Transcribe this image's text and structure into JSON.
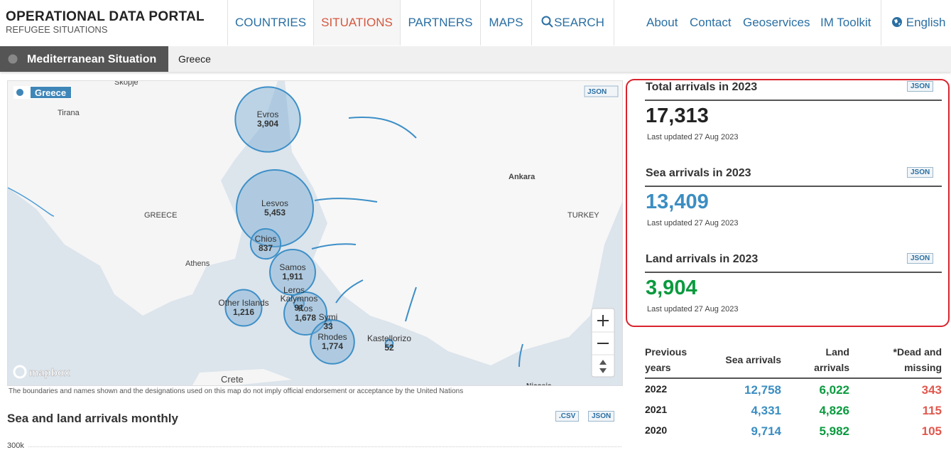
{
  "header": {
    "title": "OPERATIONAL DATA PORTAL",
    "subtitle": "REFUGEE SITUATIONS",
    "nav": [
      "COUNTRIES",
      "SITUATIONS",
      "PARTNERS",
      "MAPS",
      "SEARCH"
    ],
    "links": [
      "About",
      "Contact",
      "Geoservices",
      "IM Toolkit"
    ],
    "language": "English"
  },
  "breadcrumb": {
    "situation": "Mediterranean Situation",
    "country": "Greece"
  },
  "map": {
    "label": "Greece",
    "button": "JSON",
    "places": [
      "Skopje",
      "Tirana",
      "GREECE",
      "Athens",
      "Ankara",
      "TURKEY",
      "Crete",
      "Nicosia"
    ],
    "attribution": "mapbox",
    "points": [
      {
        "name": "Evros",
        "value": 3904,
        "value_label": "3,904"
      },
      {
        "name": "Lesvos",
        "value": 5453,
        "value_label": "5,453"
      },
      {
        "name": "Chios",
        "value": 837,
        "value_label": "837"
      },
      {
        "name": "Samos",
        "value": 1911,
        "value_label": "1,911"
      },
      {
        "name": "Other Islands",
        "value": 1216,
        "value_label": "1,216"
      },
      {
        "name": "Leros"
      },
      {
        "name": "Kalymnos",
        "value": 91,
        "value_label": "91"
      },
      {
        "name": "Kos",
        "value": 1678,
        "value_label": "1,678"
      },
      {
        "name": "Symi",
        "value": 33,
        "value_label": "33"
      },
      {
        "name": "Rhodes",
        "value": 1774,
        "value_label": "1,774"
      },
      {
        "name": "Kastellorizo",
        "value": 52,
        "value_label": "52"
      }
    ],
    "disclaimer": "The boundaries and names shown and the designations used on this map do not imply official endorsement or acceptance by the United Nations"
  },
  "monthly": {
    "title": "Sea and land arrivals monthly",
    "buttons": [
      ".CSV",
      "JSON"
    ],
    "axis_label": "300k"
  },
  "stats": [
    {
      "title": "Total arrivals in 2023",
      "value": "17,313",
      "updated": "Last updated 27 Aug 2023",
      "button": "JSON"
    },
    {
      "title": "Sea arrivals in 2023",
      "value": "13,409",
      "updated": "Last updated 27 Aug 2023",
      "button": "JSON"
    },
    {
      "title": "Land arrivals in 2023",
      "value": "3,904",
      "updated": "Last updated 27 Aug 2023",
      "button": "JSON"
    }
  ],
  "table": {
    "headers": [
      "Previous years",
      "Sea arrivals",
      "Land arrivals",
      "*Dead and missing"
    ],
    "rows": [
      [
        "2022",
        "12,758",
        "6,022",
        "343"
      ],
      [
        "2021",
        "4,331",
        "4,826",
        "115"
      ],
      [
        "2020",
        "9,714",
        "5,982",
        "105"
      ]
    ]
  }
}
